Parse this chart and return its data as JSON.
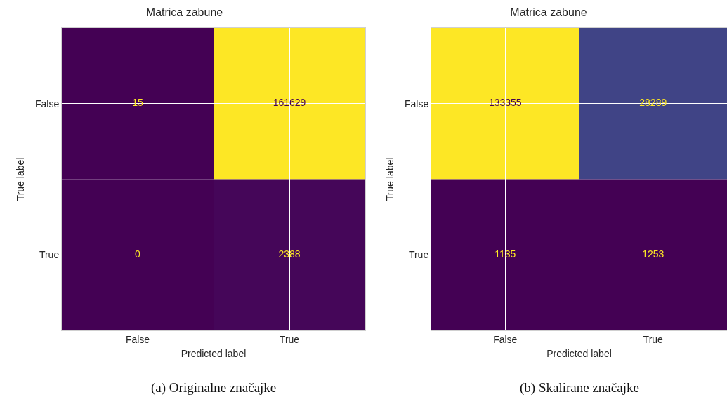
{
  "chart_data": [
    {
      "type": "heatmap",
      "title": "Matrica zabune",
      "xlabel": "Predicted label",
      "ylabel": "True label",
      "categories": [
        "False",
        "True"
      ],
      "y_categories": [
        "False",
        "True"
      ],
      "cells": [
        [
          15,
          161629
        ],
        [
          0,
          2388
        ]
      ],
      "data_labels": true,
      "grid": true,
      "annotations": [
        "(a) Originalne značajke"
      ]
    },
    {
      "type": "heatmap",
      "title": "Matrica zabune",
      "xlabel": "Predicted label",
      "ylabel": "True label",
      "categories": [
        "False",
        "True"
      ],
      "y_categories": [
        "False",
        "True"
      ],
      "cells": [
        [
          133355,
          28289
        ],
        [
          1135,
          1253
        ]
      ],
      "data_labels": true,
      "grid": true,
      "annotations": [
        "(b) Skalirane značajke"
      ]
    }
  ]
}
